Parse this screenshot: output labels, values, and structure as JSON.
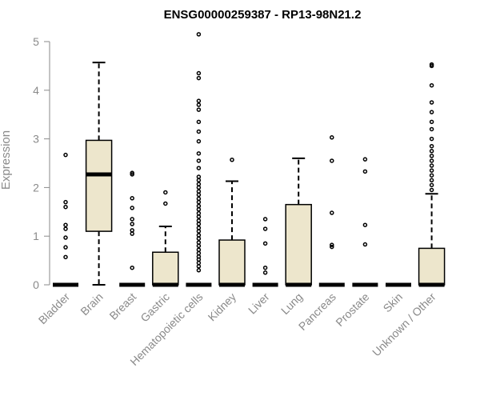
{
  "chart_data": {
    "type": "box",
    "title": "ENSG00000259387 - RP13-98N21.2",
    "xlabel": "",
    "ylabel": "Expression",
    "ylim": [
      0,
      5.2
    ],
    "yticks": [
      0,
      1,
      2,
      3,
      4,
      5
    ],
    "grid": false,
    "legend": "none",
    "colors": {
      "box_fill": "#ede6cc",
      "stroke": "#000000",
      "axis_text": "#8a8a8a"
    },
    "categories": [
      "Bladder",
      "Brain",
      "Breast",
      "Gastric",
      "Hematopoietic cells",
      "Kidney",
      "Liver",
      "Lung",
      "Pancreas",
      "Prostate",
      "Skin",
      "Unknown / Other"
    ],
    "boxes": [
      {
        "category": "Bladder",
        "min": 0,
        "q1": 0,
        "median": 0,
        "q3": 0,
        "max": 0,
        "outliers": [
          0.57,
          0.77,
          0.97,
          1.15,
          1.23,
          1.6,
          1.7,
          2.67
        ]
      },
      {
        "category": "Brain",
        "min": 0,
        "q1": 1.1,
        "median": 2.27,
        "q3": 2.97,
        "max": 4.57,
        "outliers": []
      },
      {
        "category": "Breast",
        "min": 0,
        "q1": 0,
        "median": 0,
        "q3": 0,
        "max": 0,
        "outliers": [
          0.35,
          1.05,
          1.12,
          1.25,
          1.35,
          1.58,
          1.78,
          2.27,
          2.3
        ]
      },
      {
        "category": "Gastric",
        "min": 0,
        "q1": 0,
        "median": 0,
        "q3": 0.67,
        "max": 1.2,
        "outliers": [
          1.67,
          1.9
        ]
      },
      {
        "category": "Hematopoietic cells",
        "min": 0,
        "q1": 0,
        "median": 0,
        "q3": 0,
        "max": 0,
        "outliers": [
          0.3,
          0.38,
          0.45,
          0.52,
          0.58,
          0.65,
          0.72,
          0.8,
          0.87,
          0.95,
          1.02,
          1.1,
          1.17,
          1.25,
          1.32,
          1.4,
          1.47,
          1.55,
          1.62,
          1.7,
          1.77,
          1.85,
          1.92,
          2.0,
          2.07,
          2.15,
          2.22,
          2.4,
          2.55,
          2.7,
          2.95,
          3.15,
          3.35,
          3.6,
          3.7,
          3.78,
          4.25,
          4.35,
          5.15
        ]
      },
      {
        "category": "Kidney",
        "min": 0,
        "q1": 0,
        "median": 0,
        "q3": 0.92,
        "max": 2.13,
        "outliers": [
          2.57
        ]
      },
      {
        "category": "Liver",
        "min": 0,
        "q1": 0,
        "median": 0,
        "q3": 0,
        "max": 0,
        "outliers": [
          0.25,
          0.35,
          0.85,
          1.15,
          1.35
        ]
      },
      {
        "category": "Lung",
        "min": 0,
        "q1": 0,
        "median": 0,
        "q3": 1.65,
        "max": 2.6,
        "outliers": []
      },
      {
        "category": "Pancreas",
        "min": 0,
        "q1": 0,
        "median": 0,
        "q3": 0,
        "max": 0,
        "outliers": [
          0.78,
          0.82,
          1.48,
          2.55,
          3.03
        ]
      },
      {
        "category": "Prostate",
        "min": 0,
        "q1": 0,
        "median": 0,
        "q3": 0,
        "max": 0,
        "outliers": [
          0.83,
          1.23,
          2.33,
          2.58
        ]
      },
      {
        "category": "Skin",
        "min": 0,
        "q1": 0,
        "median": 0,
        "q3": 0,
        "max": 0,
        "outliers": []
      },
      {
        "category": "Unknown / Other",
        "min": 0,
        "q1": 0,
        "median": 0,
        "q3": 0.75,
        "max": 1.87,
        "outliers": [
          1.95,
          2.05,
          2.15,
          2.25,
          2.35,
          2.45,
          2.55,
          2.65,
          2.75,
          2.85,
          3.0,
          3.2,
          3.35,
          3.55,
          3.75,
          4.1,
          4.5,
          4.53
        ]
      }
    ]
  }
}
